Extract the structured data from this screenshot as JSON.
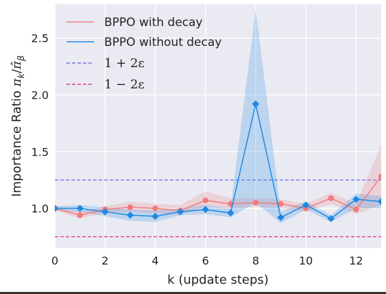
{
  "chart_data": {
    "type": "line",
    "xlabel": "k (update steps)",
    "ylabel": {
      "prefix": "Importance Ratio ",
      "pi_sub": "k",
      "sep": "/",
      "pihat_sub": "β"
    },
    "xlim": [
      0,
      13
    ],
    "ylim": [
      0.65,
      2.8
    ],
    "x_ticks": [
      0,
      2,
      4,
      6,
      8,
      10,
      12
    ],
    "x_tick_labels": [
      "0",
      "2",
      "4",
      "6",
      "8",
      "10",
      "12"
    ],
    "y_ticks": [
      1.0,
      1.5,
      2.0,
      2.5
    ],
    "y_tick_labels": [
      "1.0",
      "1.5",
      "2.0",
      "2.5"
    ],
    "grid": true,
    "background": "#eaeaf2",
    "legend_position": "top-left",
    "x": [
      0,
      1,
      2,
      3,
      4,
      5,
      6,
      7,
      8,
      9,
      10,
      11,
      12,
      13
    ],
    "series": [
      {
        "name": "BPPO with decay",
        "color": "#f07c7c",
        "marker": "circle",
        "values": [
          1.0,
          0.94,
          0.99,
          1.01,
          1.0,
          0.98,
          1.07,
          1.04,
          1.05,
          1.04,
          1.0,
          1.09,
          0.99,
          1.28
        ],
        "lower": [
          0.98,
          0.91,
          0.96,
          0.97,
          0.96,
          0.94,
          1.02,
          1.0,
          1.01,
          1.0,
          0.97,
          1.04,
          0.95,
          1.03
        ],
        "upper": [
          1.02,
          0.97,
          1.02,
          1.06,
          1.04,
          1.03,
          1.15,
          1.09,
          1.09,
          1.08,
          1.04,
          1.14,
          1.04,
          1.56
        ]
      },
      {
        "name": "BPPO without decay",
        "color": "#1e88e5",
        "marker": "diamond",
        "values": [
          1.0,
          1.0,
          0.97,
          0.94,
          0.93,
          0.97,
          0.99,
          0.96,
          1.92,
          0.92,
          1.03,
          0.91,
          1.08,
          1.06
        ],
        "lower": [
          0.98,
          0.97,
          0.93,
          0.89,
          0.88,
          0.94,
          0.95,
          0.92,
          1.05,
          0.87,
          0.99,
          0.88,
          1.0,
          1.0
        ],
        "upper": [
          1.02,
          1.03,
          1.01,
          0.99,
          0.98,
          1.0,
          1.03,
          1.0,
          2.76,
          0.97,
          1.06,
          0.94,
          1.13,
          1.11
        ]
      }
    ],
    "reference_lines": [
      {
        "name": "1 + 2ε",
        "value": 1.25,
        "color": "#7b6ff5",
        "style": "dashed"
      },
      {
        "name": "1 − 2ε",
        "value": 0.75,
        "color": "#e8319d",
        "style": "dashed"
      }
    ]
  }
}
